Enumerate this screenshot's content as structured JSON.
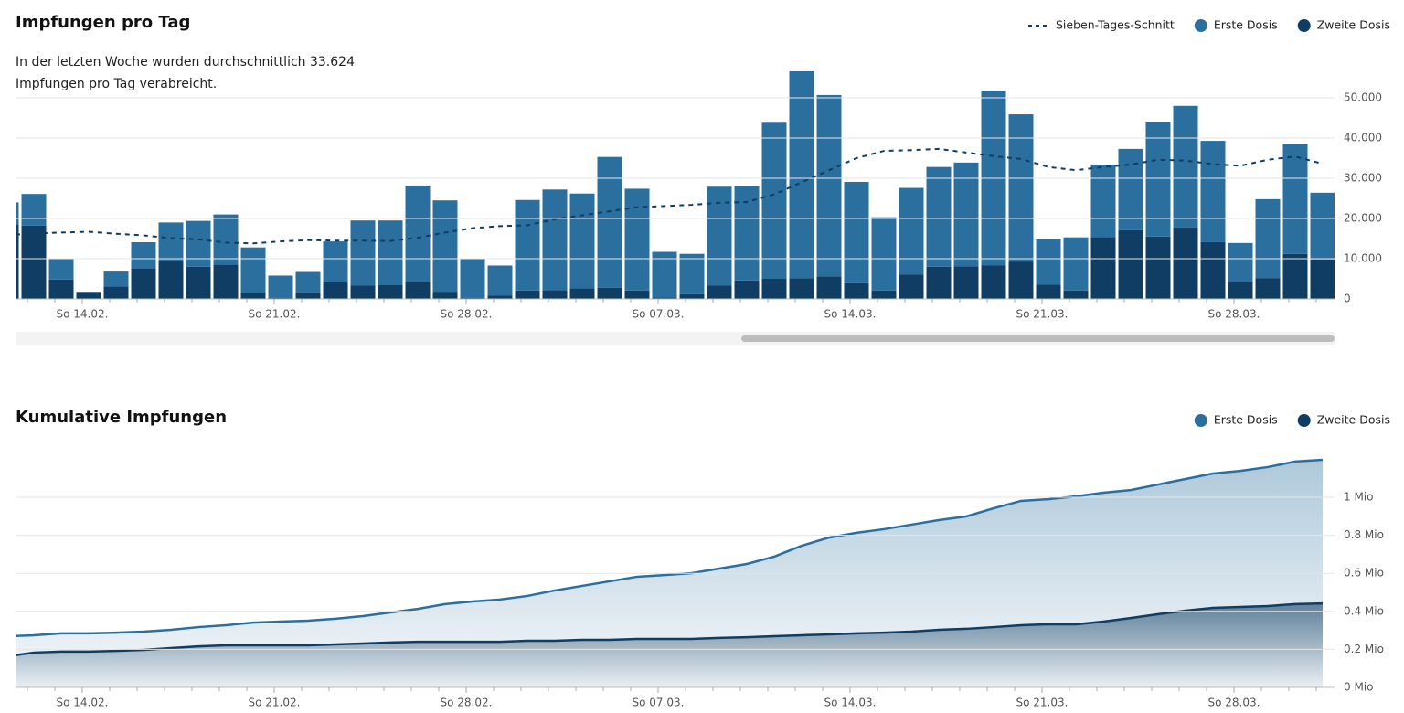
{
  "chart_data": [
    {
      "type": "bar",
      "title": "Impfungen pro Tag",
      "subtitle": "In der letzten Woche wurden durchschnittlich 33.624 Impfungen pro Tag verabreicht.",
      "categories": [
        null,
        null,
        null,
        "So 14.02.",
        null,
        null,
        null,
        null,
        null,
        null,
        "So 21.02.",
        null,
        null,
        null,
        null,
        null,
        null,
        "So 28.02.",
        null,
        null,
        null,
        null,
        null,
        null,
        "So 07.03.",
        null,
        null,
        null,
        null,
        null,
        null,
        "So 14.03.",
        null,
        null,
        null,
        null,
        null,
        null,
        "So 21.03.",
        null,
        null,
        null,
        null,
        null,
        null,
        "So 28.03.",
        null,
        null,
        null
      ],
      "series": [
        {
          "name": "Sieben-Tages-Schnitt",
          "type": "line",
          "line_style": "dashed",
          "color": "#0f3d63",
          "values": [
            15800,
            16300,
            16500,
            16700,
            16200,
            15800,
            15100,
            14800,
            14000,
            13800,
            14300,
            14600,
            14500,
            14500,
            14400,
            15200,
            16500,
            17600,
            18100,
            18300,
            19800,
            20800,
            21800,
            22800,
            23100,
            23400,
            23900,
            24100,
            26000,
            29000,
            32000,
            35000,
            36800,
            37000,
            37300,
            36400,
            35500,
            34800,
            32800,
            32000,
            32800,
            33400,
            34600,
            34400,
            33500,
            33100,
            34600,
            35400,
            33600
          ]
        },
        {
          "name": "Erste Dosis",
          "type": "bar",
          "color": "#2a6f9e",
          "values": [
            5500,
            7900,
            5200,
            300,
            3700,
            6600,
            9500,
            11400,
            12500,
            11400,
            5500,
            5100,
            10100,
            16200,
            16000,
            23900,
            22700,
            9800,
            7500,
            22500,
            25000,
            23600,
            32500,
            25300,
            11300,
            10000,
            24600,
            23500,
            38800,
            51500,
            45100,
            25200,
            18200,
            21500,
            24800,
            25800,
            43300,
            36600,
            11400,
            13200,
            18000,
            20200,
            28400,
            30200,
            25200,
            9600,
            19600,
            27400,
            16600
          ]
        },
        {
          "name": "Zweite Dosis",
          "type": "bar",
          "color": "#0f3d63",
          "values": [
            18500,
            18200,
            4800,
            1500,
            3100,
            7500,
            9500,
            8000,
            8500,
            1400,
            300,
            1600,
            4200,
            3300,
            3500,
            4300,
            1800,
            300,
            800,
            2100,
            2200,
            2600,
            2800,
            2100,
            400,
            1200,
            3300,
            4600,
            5000,
            5100,
            5600,
            3900,
            2100,
            6100,
            8000,
            8100,
            8300,
            9300,
            3600,
            2100,
            15400,
            17100,
            15500,
            17800,
            14100,
            4300,
            5200,
            11200,
            9800
          ]
        }
      ],
      "ylim": [
        0,
        60000
      ],
      "yticks": [
        0,
        {
          "value": 10000,
          "label": "10.000"
        },
        {
          "value": 20000,
          "label": "20.000"
        },
        {
          "value": 30000,
          "label": "30.000"
        },
        {
          "value": 40000,
          "label": "40.000"
        },
        {
          "value": 50000,
          "label": "50.000"
        }
      ],
      "grid": true,
      "stacked": true
    },
    {
      "type": "area",
      "title": "Kumulative Impfungen",
      "categories": [
        null,
        null,
        null,
        "So 14.02.",
        null,
        null,
        null,
        null,
        null,
        null,
        "So 21.02.",
        null,
        null,
        null,
        null,
        null,
        null,
        "So 28.02.",
        null,
        null,
        null,
        null,
        null,
        null,
        "So 07.03.",
        null,
        null,
        null,
        null,
        null,
        null,
        "So 14.03.",
        null,
        null,
        null,
        null,
        null,
        null,
        "So 21.03.",
        null,
        null,
        null,
        null,
        null,
        null,
        "So 28.03.",
        null,
        null,
        null
      ],
      "series": [
        {
          "name": "Erste Dosis",
          "color": "#2a6f9e",
          "values": [
            269000,
            274000,
            284000,
            284000,
            288000,
            293000,
            303000,
            317000,
            327000,
            341000,
            346000,
            351000,
            361000,
            375000,
            394000,
            413000,
            438000,
            452000,
            462000,
            481000,
            510000,
            534000,
            558000,
            582000,
            591000,
            601000,
            625000,
            649000,
            688000,
            745000,
            788000,
            813000,
            832000,
            856000,
            880000,
            899000,
            942000,
            981000,
            990000,
            1005000,
            1024000,
            1038000,
            1067000,
            1096000,
            1125000,
            1139000,
            1159000,
            1188000,
            1197000
          ]
        },
        {
          "name": "Zweite Dosis",
          "color": "#0f3d63",
          "values": [
            163000,
            183000,
            188000,
            188000,
            192000,
            197000,
            207000,
            216000,
            221000,
            221000,
            221000,
            221000,
            226000,
            231000,
            236000,
            240000,
            240000,
            240000,
            240000,
            245000,
            245000,
            250000,
            250000,
            255000,
            255000,
            255000,
            260000,
            264000,
            269000,
            274000,
            279000,
            284000,
            288000,
            293000,
            303000,
            308000,
            317000,
            327000,
            332000,
            332000,
            346000,
            365000,
            385000,
            404000,
            418000,
            423000,
            428000,
            438000,
            442000
          ]
        }
      ],
      "ylim": [
        0,
        1250000
      ],
      "yticks": [
        {
          "value": 0,
          "label": "0 Mio"
        },
        {
          "value": 200000,
          "label": "0.2 Mio"
        },
        {
          "value": 400000,
          "label": "0.4 Mio"
        },
        {
          "value": 600000,
          "label": "0.6 Mio"
        },
        {
          "value": 800000,
          "label": "0.8 Mio"
        },
        {
          "value": 1000000,
          "label": "1 Mio"
        }
      ],
      "grid": true
    }
  ]
}
